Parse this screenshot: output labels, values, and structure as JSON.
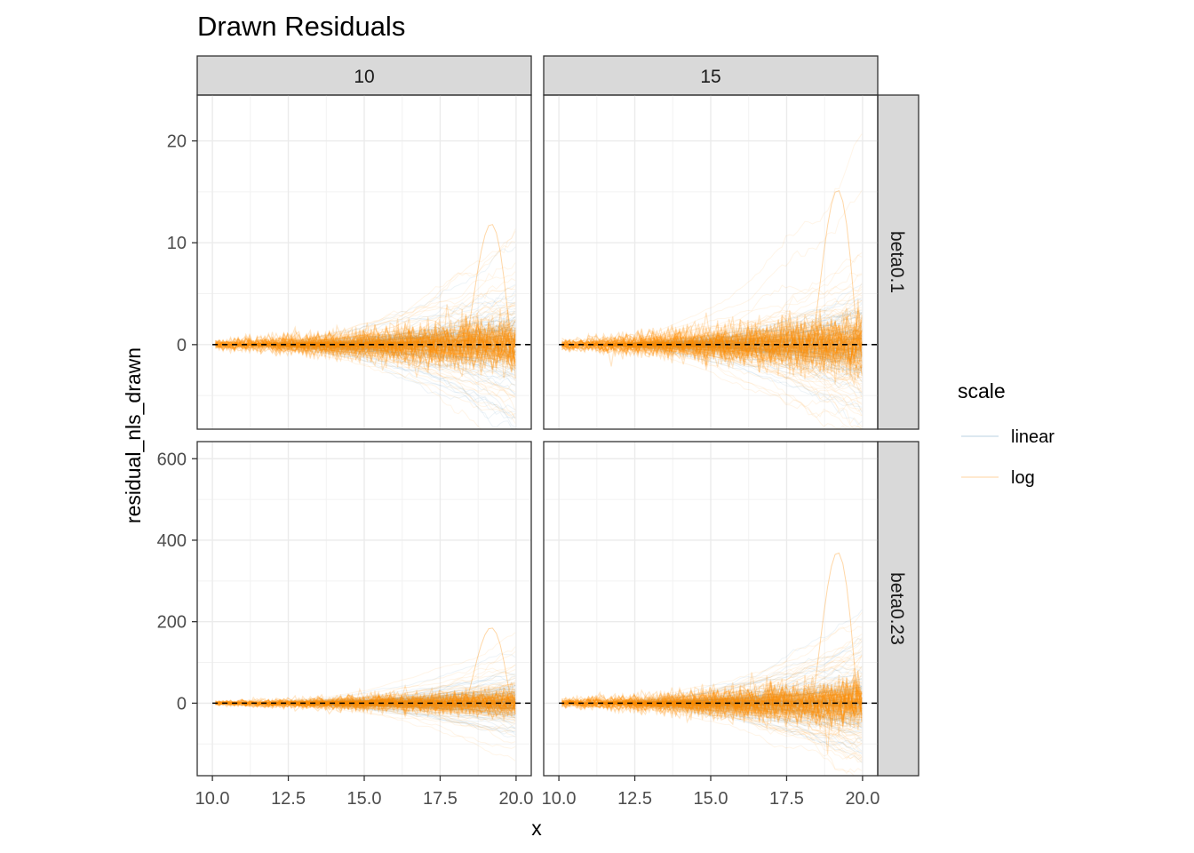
{
  "chart_data": {
    "type": "line",
    "title": "Drawn Residuals",
    "xlabel": "x",
    "ylabel": "residual_nls_drawn",
    "x_range": [
      10,
      20
    ],
    "xlim": [
      9.5,
      20.5
    ],
    "x_ticks": [
      10,
      12.5,
      15,
      17.5,
      20
    ],
    "x_tick_labels": [
      "10.0",
      "12.5",
      "15.0",
      "17.5",
      "20.0"
    ],
    "grid": true,
    "facet_columns": [
      "10",
      "15"
    ],
    "facet_rows": [
      "beta0.1",
      "beta0.23"
    ],
    "row_scales": [
      {
        "ylim": [
          -8.3,
          24.5
        ],
        "ticks": [
          0,
          10,
          20
        ],
        "tick_labels": [
          "0",
          "10",
          "20"
        ]
      },
      {
        "ylim": [
          -178,
          642
        ],
        "ticks": [
          0,
          200,
          400,
          600
        ],
        "tick_labels": [
          "0",
          "200",
          "400",
          "600"
        ]
      }
    ],
    "reference_line": {
      "y": 0,
      "style": "dashed",
      "color": "#000000"
    },
    "legend": {
      "title": "scale",
      "placement": "right",
      "entries": [
        {
          "label": "linear",
          "color": "#4682b4"
        },
        {
          "label": "log",
          "color": "#ff8c00"
        }
      ]
    },
    "panels": [
      {
        "col": "10",
        "row": "beta0.1",
        "linear_max_abs": 8.0,
        "log_max_abs": 9.0,
        "log_peak": 16.0
      },
      {
        "col": "15",
        "row": "beta0.1",
        "linear_max_abs": 7.0,
        "log_max_abs": 10.0,
        "log_peak": 20.5
      },
      {
        "col": "10",
        "row": "beta0.23",
        "linear_max_abs": 90,
        "log_max_abs": 110,
        "log_peak": 250
      },
      {
        "col": "15",
        "row": "beta0.23",
        "linear_max_abs": 130,
        "log_max_abs": 200,
        "log_peak": 500
      }
    ]
  },
  "colors": {
    "linear": "#4682b4",
    "log": "#ff8c00",
    "strip": "#d9d9d9",
    "grid": "#ebebeb"
  }
}
